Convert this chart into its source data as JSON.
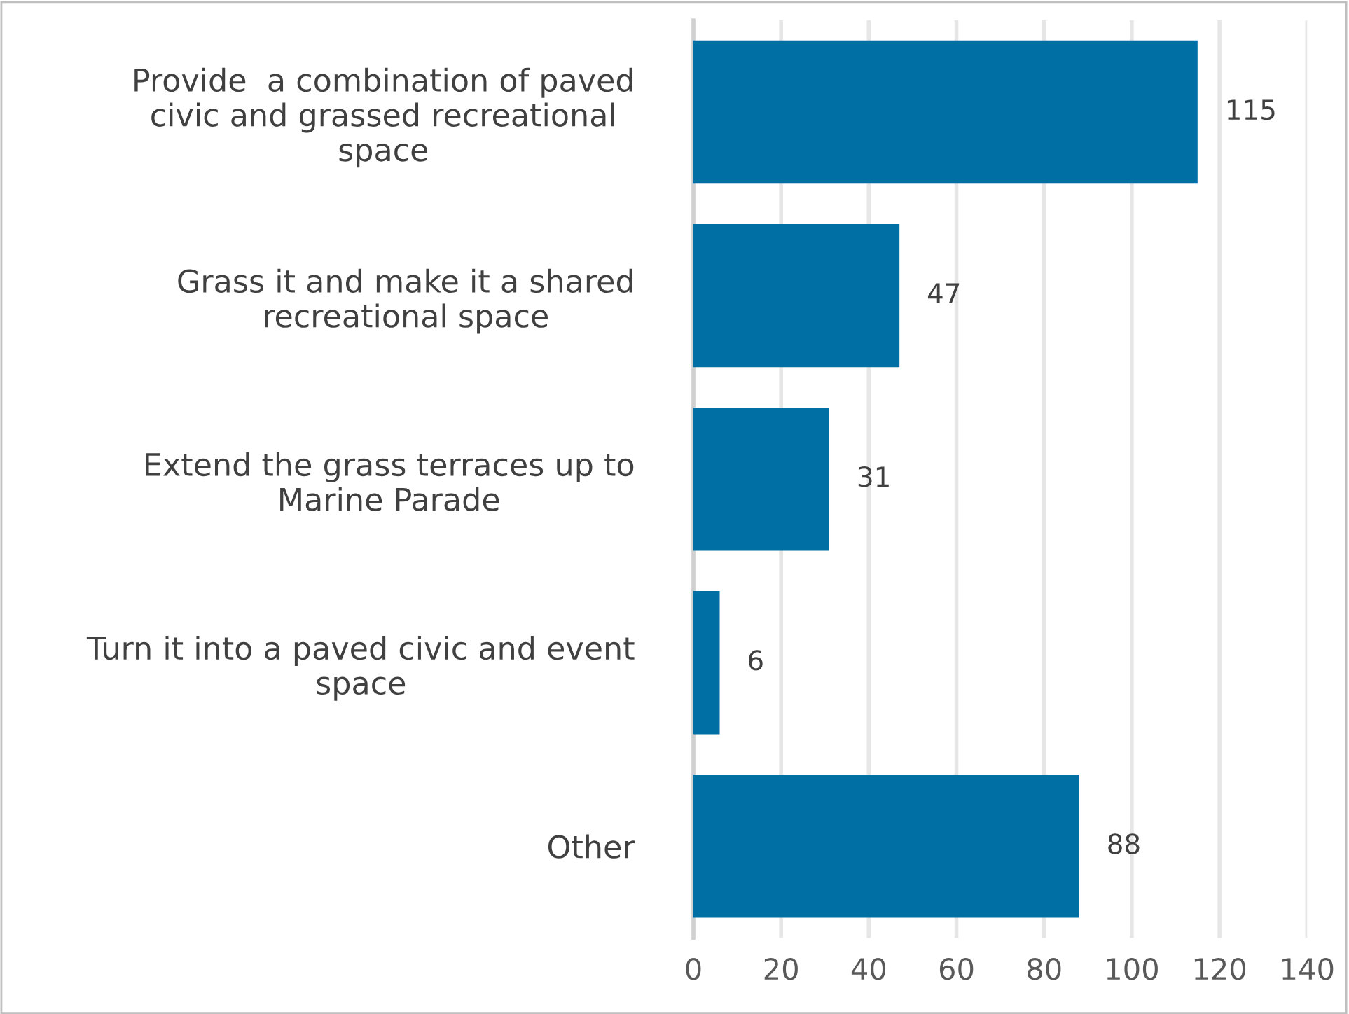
{
  "chart_data": {
    "type": "bar",
    "orientation": "horizontal",
    "categories": [
      "Provide  a combination of paved\ncivic and grassed recreational\nspace",
      "Grass it and make it a shared\nrecreational space",
      "Extend the grass terraces up to\nMarine Parade",
      "Turn it into a paved civic and event\nspace",
      "Other"
    ],
    "values": [
      115,
      47,
      31,
      6,
      88
    ],
    "color": "#0070a4",
    "xlim": [
      0,
      140
    ],
    "xticks": [
      0,
      20,
      40,
      60,
      80,
      100,
      120,
      140
    ],
    "grid": "x",
    "data_labels": true
  }
}
